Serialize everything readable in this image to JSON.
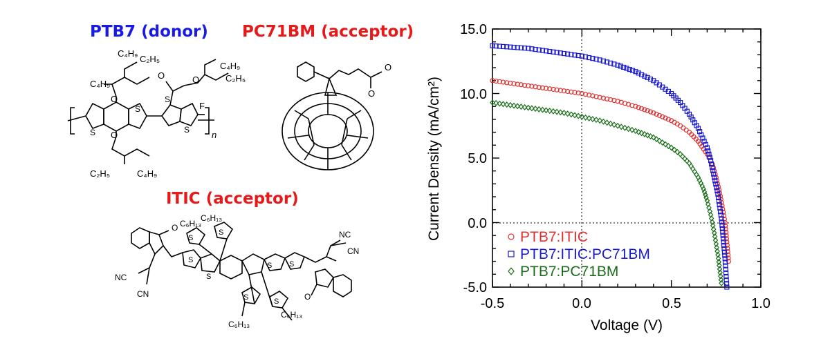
{
  "molecules": {
    "ptb7": {
      "title": "PTB7 (donor)",
      "color": "#1a1ae6"
    },
    "pc71bm": {
      "title": "PC71BM (acceptor)",
      "color": "#e61a1a"
    },
    "itic": {
      "title": "ITIC (acceptor)",
      "color": "#e61a1a"
    }
  },
  "chart_data": {
    "type": "scatter",
    "title": "",
    "xlabel": "Voltage (V)",
    "ylabel": "Current Density (mA/cm²)",
    "xlim": [
      -0.5,
      1.0
    ],
    "ylim": [
      -5.0,
      15.0
    ],
    "xticks": [
      "-0.5",
      "0.0",
      "0.5",
      "1.0"
    ],
    "yticks": [
      "-5.0",
      "0.0",
      "5.0",
      "10.0",
      "15.0"
    ],
    "grid": false,
    "reference_lines": {
      "x": 0.0,
      "y": 0.0,
      "style": "dotted"
    },
    "legend_position": "bottom-left",
    "series": [
      {
        "name": "PTB7:ITIC",
        "marker": "circle",
        "color": "#e03030",
        "x": [
          -0.5,
          -0.4,
          -0.3,
          -0.2,
          -0.1,
          0.0,
          0.1,
          0.2,
          0.3,
          0.4,
          0.5,
          0.55,
          0.6,
          0.65,
          0.7,
          0.73,
          0.75,
          0.77,
          0.79,
          0.8,
          0.81,
          0.82
        ],
        "y": [
          11.0,
          10.8,
          10.6,
          10.4,
          10.2,
          10.0,
          9.7,
          9.4,
          9.0,
          8.5,
          7.9,
          7.5,
          7.0,
          6.3,
          5.3,
          4.5,
          3.5,
          2.3,
          0.8,
          0.0,
          -1.5,
          -3.0
        ]
      },
      {
        "name": "PTB7:ITIC:PC71BM",
        "marker": "square",
        "color": "#1a1ad0",
        "x": [
          -0.5,
          -0.4,
          -0.3,
          -0.2,
          -0.1,
          0.0,
          0.1,
          0.2,
          0.3,
          0.4,
          0.5,
          0.55,
          0.6,
          0.65,
          0.7,
          0.72,
          0.74,
          0.76,
          0.78,
          0.8,
          0.81
        ],
        "y": [
          13.7,
          13.6,
          13.5,
          13.3,
          13.1,
          12.9,
          12.6,
          12.2,
          11.7,
          11.0,
          10.0,
          9.3,
          8.4,
          7.3,
          5.8,
          4.8,
          3.5,
          2.2,
          0.3,
          -2.8,
          -5.0
        ]
      },
      {
        "name": "PTB7:PC71BM",
        "marker": "diamond",
        "color": "#1a6e1a",
        "x": [
          -0.5,
          -0.4,
          -0.3,
          -0.2,
          -0.1,
          0.0,
          0.1,
          0.2,
          0.3,
          0.4,
          0.5,
          0.55,
          0.6,
          0.65,
          0.68,
          0.7,
          0.72,
          0.74,
          0.76,
          0.78
        ],
        "y": [
          9.3,
          9.1,
          8.9,
          8.7,
          8.5,
          8.2,
          7.9,
          7.5,
          7.1,
          6.6,
          5.8,
          5.3,
          4.6,
          3.5,
          2.6,
          1.7,
          0.6,
          -0.8,
          -2.5,
          -4.7
        ]
      }
    ]
  }
}
